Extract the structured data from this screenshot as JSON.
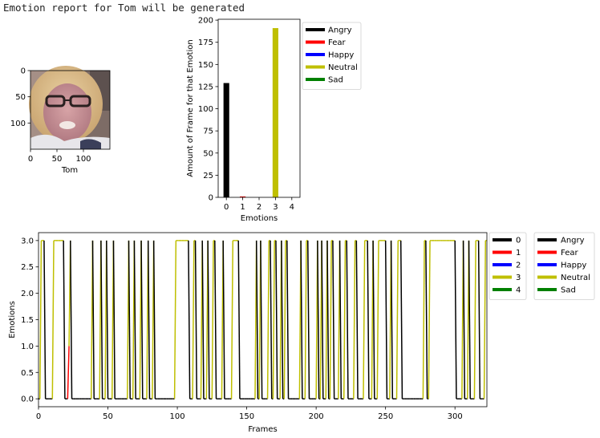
{
  "header": {
    "message": "Emotion report for Tom will be generated"
  },
  "face_panel": {
    "xlabel": "Tom",
    "yticks": [
      "0",
      "50",
      "100"
    ],
    "xticks": [
      "0",
      "50",
      "100"
    ],
    "image_description_icon": "face-photo"
  },
  "colors": {
    "Angry": "#000000",
    "Fear": "#ff0000",
    "Happy": "#0000ff",
    "Neutral": "#bfbf00",
    "Sad": "#008000"
  },
  "chart_data": [
    {
      "type": "bar",
      "xlabel": "Emotions",
      "ylabel": "Amount of Frame for that Emotion",
      "categories": [
        "0",
        "1",
        "3"
      ],
      "x": [
        0,
        1,
        3
      ],
      "values": [
        129,
        1,
        191
      ],
      "bar_colors": [
        "#000000",
        "#ff0000",
        "#bfbf00"
      ],
      "xlim": [
        -0.5,
        4.5
      ],
      "ylim": [
        0,
        201
      ],
      "xticks": [
        "0",
        "1",
        "2",
        "3",
        "4"
      ],
      "yticks": [
        "0",
        "25",
        "50",
        "75",
        "100",
        "125",
        "150",
        "175",
        "200"
      ],
      "legend": {
        "placement": "right",
        "entries": [
          {
            "label": "Angry",
            "color": "#000000"
          },
          {
            "label": "Fear",
            "color": "#ff0000"
          },
          {
            "label": "Happy",
            "color": "#0000ff"
          },
          {
            "label": "Neutral",
            "color": "#bfbf00"
          },
          {
            "label": "Sad",
            "color": "#008000"
          }
        ]
      }
    },
    {
      "type": "line",
      "xlabel": "Frames",
      "ylabel": "Emotions",
      "xlim": [
        0,
        323
      ],
      "ylim": [
        -0.15,
        3.15
      ],
      "xticks": [
        "0",
        "50",
        "100",
        "150",
        "200",
        "250",
        "300"
      ],
      "yticks": [
        "0.0",
        "0.5",
        "1.0",
        "1.5",
        "2.0",
        "2.5",
        "3.0"
      ],
      "zero_intervals": [
        [
          0,
          1
        ],
        [
          5,
          10
        ],
        [
          19,
          21
        ],
        [
          24,
          38
        ],
        [
          40,
          44
        ],
        [
          46,
          48
        ],
        [
          50,
          53
        ],
        [
          55,
          64
        ],
        [
          66,
          68
        ],
        [
          70,
          73
        ],
        [
          75,
          78
        ],
        [
          80,
          82
        ],
        [
          84,
          98
        ],
        [
          109,
          111
        ],
        [
          114,
          117
        ],
        [
          119,
          121
        ],
        [
          123,
          125
        ],
        [
          128,
          132
        ],
        [
          134,
          139
        ],
        [
          145,
          153
        ],
        [
          154,
          156
        ],
        [
          158,
          159
        ],
        [
          161,
          165
        ],
        [
          168,
          169
        ],
        [
          172,
          174
        ],
        [
          176,
          177
        ],
        [
          180,
          188
        ],
        [
          190,
          192
        ],
        [
          195,
          197
        ],
        [
          198,
          200
        ],
        [
          202,
          203
        ],
        [
          205,
          207
        ],
        [
          209,
          210
        ],
        [
          213,
          216
        ],
        [
          218,
          220
        ],
        [
          223,
          227
        ],
        [
          230,
          234
        ],
        [
          238,
          240
        ],
        [
          242,
          244
        ],
        [
          251,
          253
        ],
        [
          255,
          258
        ],
        [
          262,
          277
        ],
        [
          280,
          281
        ],
        [
          301,
          305
        ],
        [
          307,
          309
        ],
        [
          311,
          314
        ],
        [
          318,
          321
        ]
      ],
      "fear_spike_frames": [
        22
      ],
      "legends": [
        {
          "placement": "outside-right",
          "entries": [
            {
              "label": "0",
              "color": "#000000"
            },
            {
              "label": "1",
              "color": "#ff0000"
            },
            {
              "label": "2",
              "color": "#0000ff"
            },
            {
              "label": "3",
              "color": "#bfbf00"
            },
            {
              "label": "4",
              "color": "#008000"
            }
          ]
        },
        {
          "placement": "outside-right",
          "entries": [
            {
              "label": "Angry",
              "color": "#000000"
            },
            {
              "label": "Fear",
              "color": "#ff0000"
            },
            {
              "label": "Happy",
              "color": "#0000ff"
            },
            {
              "label": "Neutral",
              "color": "#bfbf00"
            },
            {
              "label": "Sad",
              "color": "#008000"
            }
          ]
        }
      ]
    }
  ]
}
